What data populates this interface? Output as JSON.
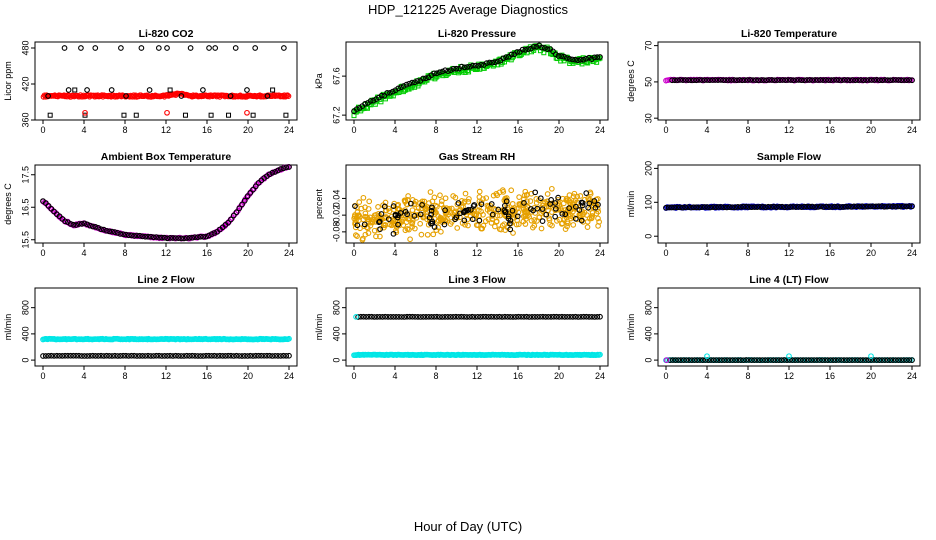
{
  "figure": {
    "title": "HDP_121225  Average Diagnostics",
    "xlabel": "Hour of Day (UTC)"
  },
  "chart_data": [
    {
      "id": "co2",
      "type": "scatter",
      "title": "Li-820 CO2",
      "ylabel": "Licor ppm",
      "xlim": [
        0,
        24
      ],
      "ylim": [
        360,
        490
      ],
      "xticks": [
        "0",
        "4",
        "8",
        "12",
        "16",
        "20",
        "24"
      ],
      "yticks": [
        360,
        420,
        480
      ],
      "series": [
        {
          "color": "#ff0000",
          "kind": "band",
          "base": 400,
          "amp": 1.5,
          "bump": {
            "at": 13.2,
            "h": 3
          },
          "shape": "circle",
          "count": 240
        },
        {
          "color": "#000000",
          "kind": "points",
          "shape": "circle",
          "x": [
            0.5,
            2.1,
            2.5,
            3.7,
            4.3,
            5.1,
            6.7,
            7.6,
            8.1,
            9.6,
            10.4,
            11.3,
            12.1,
            13.5,
            14.4,
            15.6,
            16.2,
            16.8,
            18.3,
            18.8,
            19.9,
            20.7,
            21.9,
            23.5
          ],
          "y": [
            400,
            480,
            410,
            480,
            410,
            480,
            410,
            480,
            400,
            480,
            410,
            480,
            480,
            400,
            480,
            410,
            480,
            480,
            400,
            480,
            410,
            480,
            400,
            480
          ]
        },
        {
          "color": "#000000",
          "kind": "points",
          "shape": "square",
          "x": [
            0.7,
            3.1,
            4.1,
            7.9,
            9.1,
            12.4,
            13.9,
            16.4,
            18.1,
            20.5,
            22.4,
            23.7
          ],
          "y": [
            368,
            410,
            368,
            368,
            368,
            410,
            368,
            368,
            368,
            368,
            410,
            368
          ]
        },
        {
          "color": "#ff0000",
          "kind": "points",
          "shape": "circle",
          "x": [
            4.1,
            12.1,
            19.9
          ],
          "y": [
            372,
            372,
            372
          ]
        }
      ]
    },
    {
      "id": "pressure",
      "type": "scatter",
      "title": "Li-820 Pressure",
      "ylabel": "kPa",
      "xlim": [
        0,
        24
      ],
      "ylim": [
        67.15,
        67.95
      ],
      "xticks": [
        "0",
        "4",
        "8",
        "12",
        "16",
        "20",
        "24"
      ],
      "yticks": [
        67.2,
        67.6
      ],
      "series": [
        {
          "color": "#00cc00",
          "kind": "curve",
          "shape": "square",
          "count": 220,
          "spread": 0.035,
          "offset": -0.01,
          "x": [
            0,
            2,
            4,
            6,
            8,
            10,
            12,
            14,
            16,
            18,
            19,
            20,
            21,
            22,
            24
          ],
          "y": [
            67.24,
            67.35,
            67.45,
            67.53,
            67.62,
            67.67,
            67.7,
            67.74,
            67.84,
            67.9,
            67.87,
            67.8,
            67.77,
            67.76,
            67.78
          ]
        },
        {
          "color": "#000000",
          "kind": "curve",
          "shape": "circle",
          "count": 90,
          "spread": 0.01,
          "offset": 0.01,
          "x": [
            0,
            2,
            4,
            6,
            8,
            10,
            12,
            14,
            16,
            18,
            19,
            20,
            21,
            22,
            24
          ],
          "y": [
            67.24,
            67.35,
            67.45,
            67.53,
            67.62,
            67.67,
            67.7,
            67.74,
            67.84,
            67.9,
            67.87,
            67.8,
            67.77,
            67.76,
            67.78
          ]
        }
      ]
    },
    {
      "id": "temp",
      "type": "scatter",
      "title": "Li-820 Temperature",
      "ylabel": "degrees C",
      "xlim": [
        0,
        24
      ],
      "ylim": [
        29,
        72
      ],
      "xticks": [
        "0",
        "4",
        "8",
        "12",
        "16",
        "20",
        "24"
      ],
      "yticks": [
        30,
        50,
        70
      ],
      "series": [
        {
          "color": "#cc00cc",
          "kind": "curve",
          "shape": "circle",
          "count": 160,
          "spread": 0.3,
          "offset": 0,
          "x": [
            0,
            24
          ],
          "y": [
            51,
            51
          ]
        },
        {
          "color": "#000000",
          "kind": "curve",
          "shape": "circle",
          "count": 90,
          "spread": 0.1,
          "offset": 0,
          "x": [
            0.6,
            24
          ],
          "y": [
            51,
            51
          ]
        }
      ]
    },
    {
      "id": "ambient",
      "type": "scatter",
      "title": "Ambient Box Temperature",
      "ylabel": "degrees C",
      "xlim": [
        0,
        24
      ],
      "ylim": [
        15.4,
        17.8
      ],
      "xticks": [
        "0",
        "4",
        "8",
        "12",
        "16",
        "20",
        "24"
      ],
      "yticks": [
        15.5,
        16.5,
        17.5
      ],
      "series": [
        {
          "color": "#cc00cc",
          "kind": "curve",
          "shape": "circle",
          "count": 170,
          "spread": 0.02,
          "offset": 0,
          "x": [
            0,
            1,
            2,
            3,
            4,
            5,
            6,
            8,
            10,
            12,
            14,
            16,
            17,
            18,
            19,
            20,
            21,
            22,
            23,
            24
          ],
          "y": [
            16.7,
            16.4,
            16.1,
            15.95,
            16.0,
            15.9,
            15.8,
            15.65,
            15.6,
            15.55,
            15.55,
            15.6,
            15.75,
            16.0,
            16.4,
            16.85,
            17.25,
            17.5,
            17.65,
            17.75
          ]
        },
        {
          "color": "#000000",
          "kind": "curve",
          "shape": "circle",
          "count": 90,
          "spread": 0.01,
          "offset": 0,
          "x": [
            0,
            1,
            2,
            3,
            4,
            5,
            6,
            8,
            10,
            12,
            14,
            16,
            17,
            18,
            19,
            20,
            21,
            22,
            23,
            24
          ],
          "y": [
            16.7,
            16.4,
            16.1,
            15.95,
            16.0,
            15.9,
            15.8,
            15.65,
            15.6,
            15.55,
            15.55,
            15.6,
            15.75,
            16.0,
            16.4,
            16.85,
            17.25,
            17.5,
            17.65,
            17.75
          ]
        }
      ]
    },
    {
      "id": "rh",
      "type": "scatter",
      "title": "Gas Stream RH",
      "ylabel": "percent",
      "xlim": [
        0,
        24
      ],
      "ylim": [
        -0.12,
        0.16
      ],
      "xticks": [
        "0",
        "4",
        "8",
        "12",
        "16",
        "20",
        "24"
      ],
      "yticks": [
        -0.08,
        -0.02,
        0.04
      ],
      "series": [
        {
          "color": "#e6a100",
          "kind": "noise",
          "shape": "circle",
          "count": 520,
          "center": -0.01,
          "spread": 0.055,
          "trend": 0.0015,
          "seed": 7
        },
        {
          "color": "#000000",
          "kind": "noise",
          "shape": "circle",
          "count": 95,
          "center": -0.01,
          "spread": 0.045,
          "trend": 0.0015,
          "seed": 3
        }
      ]
    },
    {
      "id": "sample",
      "type": "scatter",
      "title": "Sample Flow",
      "ylabel": "ml/min",
      "xlim": [
        0,
        24
      ],
      "ylim": [
        -20,
        210
      ],
      "xticks": [
        "0",
        "4",
        "8",
        "12",
        "16",
        "20",
        "24"
      ],
      "yticks": [
        0,
        100,
        200
      ],
      "series": [
        {
          "color": "#0000cc",
          "kind": "curve",
          "shape": "circle",
          "count": 200,
          "spread": 2,
          "offset": 0,
          "x": [
            0,
            24
          ],
          "y": [
            85,
            88
          ]
        },
        {
          "color": "#000000",
          "kind": "curve",
          "shape": "circle",
          "count": 90,
          "spread": 1,
          "offset": 0,
          "x": [
            0,
            24
          ],
          "y": [
            85,
            88
          ]
        }
      ]
    },
    {
      "id": "line2",
      "type": "scatter",
      "title": "Line 2 Flow",
      "ylabel": "ml/min",
      "xlim": [
        0,
        24
      ],
      "ylim": [
        -90,
        1100
      ],
      "xticks": [
        "0",
        "4",
        "8",
        "12",
        "16",
        "20",
        "24"
      ],
      "yticks": [
        0,
        400,
        800
      ],
      "series": [
        {
          "color": "#00e6e6",
          "kind": "curve",
          "shape": "circle",
          "count": 220,
          "spread": 6,
          "offset": 0,
          "x": [
            0,
            24
          ],
          "y": [
            320,
            320
          ]
        },
        {
          "color": "#000000",
          "kind": "curve",
          "shape": "circle",
          "count": 90,
          "spread": 2,
          "offset": 0,
          "x": [
            0,
            24
          ],
          "y": [
            65,
            65
          ]
        }
      ]
    },
    {
      "id": "line3",
      "type": "scatter",
      "title": "Line 3 Flow",
      "ylabel": "ml/min",
      "xlim": [
        0,
        24
      ],
      "ylim": [
        -90,
        1100
      ],
      "xticks": [
        "0",
        "4",
        "8",
        "12",
        "16",
        "20",
        "24"
      ],
      "yticks": [
        0,
        400,
        800
      ],
      "series": [
        {
          "color": "#00e6e6",
          "kind": "curve",
          "shape": "circle",
          "count": 220,
          "spread": 5,
          "offset": 0,
          "x": [
            0,
            24
          ],
          "y": [
            80,
            80
          ]
        },
        {
          "color": "#000000",
          "kind": "curve",
          "shape": "circle",
          "count": 90,
          "spread": 2,
          "offset": 0,
          "x": [
            0.4,
            24
          ],
          "y": [
            660,
            660
          ]
        },
        {
          "color": "#00e6e6",
          "kind": "points",
          "shape": "circle",
          "x": [
            0.2
          ],
          "y": [
            660
          ]
        }
      ]
    },
    {
      "id": "line4",
      "type": "scatter",
      "title": "Line 4 (LT) Flow",
      "ylabel": "ml/min",
      "xlim": [
        0,
        24
      ],
      "ylim": [
        -90,
        1100
      ],
      "xticks": [
        "0",
        "4",
        "8",
        "12",
        "16",
        "20",
        "24"
      ],
      "yticks": [
        0,
        400,
        800
      ],
      "series": [
        {
          "color": "#00e6e6",
          "kind": "curve",
          "shape": "circle",
          "count": 120,
          "spread": 2,
          "offset": 0,
          "x": [
            0,
            24
          ],
          "y": [
            0,
            0
          ]
        },
        {
          "color": "#000000",
          "kind": "curve",
          "shape": "circle",
          "count": 90,
          "spread": 1,
          "offset": 0,
          "x": [
            0.4,
            24
          ],
          "y": [
            0,
            0
          ]
        },
        {
          "color": "#00e6e6",
          "kind": "points",
          "shape": "circle",
          "x": [
            4.0,
            12.0,
            20.0
          ],
          "y": [
            60,
            60,
            60
          ]
        },
        {
          "color": "#cc00cc",
          "kind": "points",
          "shape": "circle",
          "x": [
            0.05
          ],
          "y": [
            0
          ]
        }
      ]
    }
  ]
}
